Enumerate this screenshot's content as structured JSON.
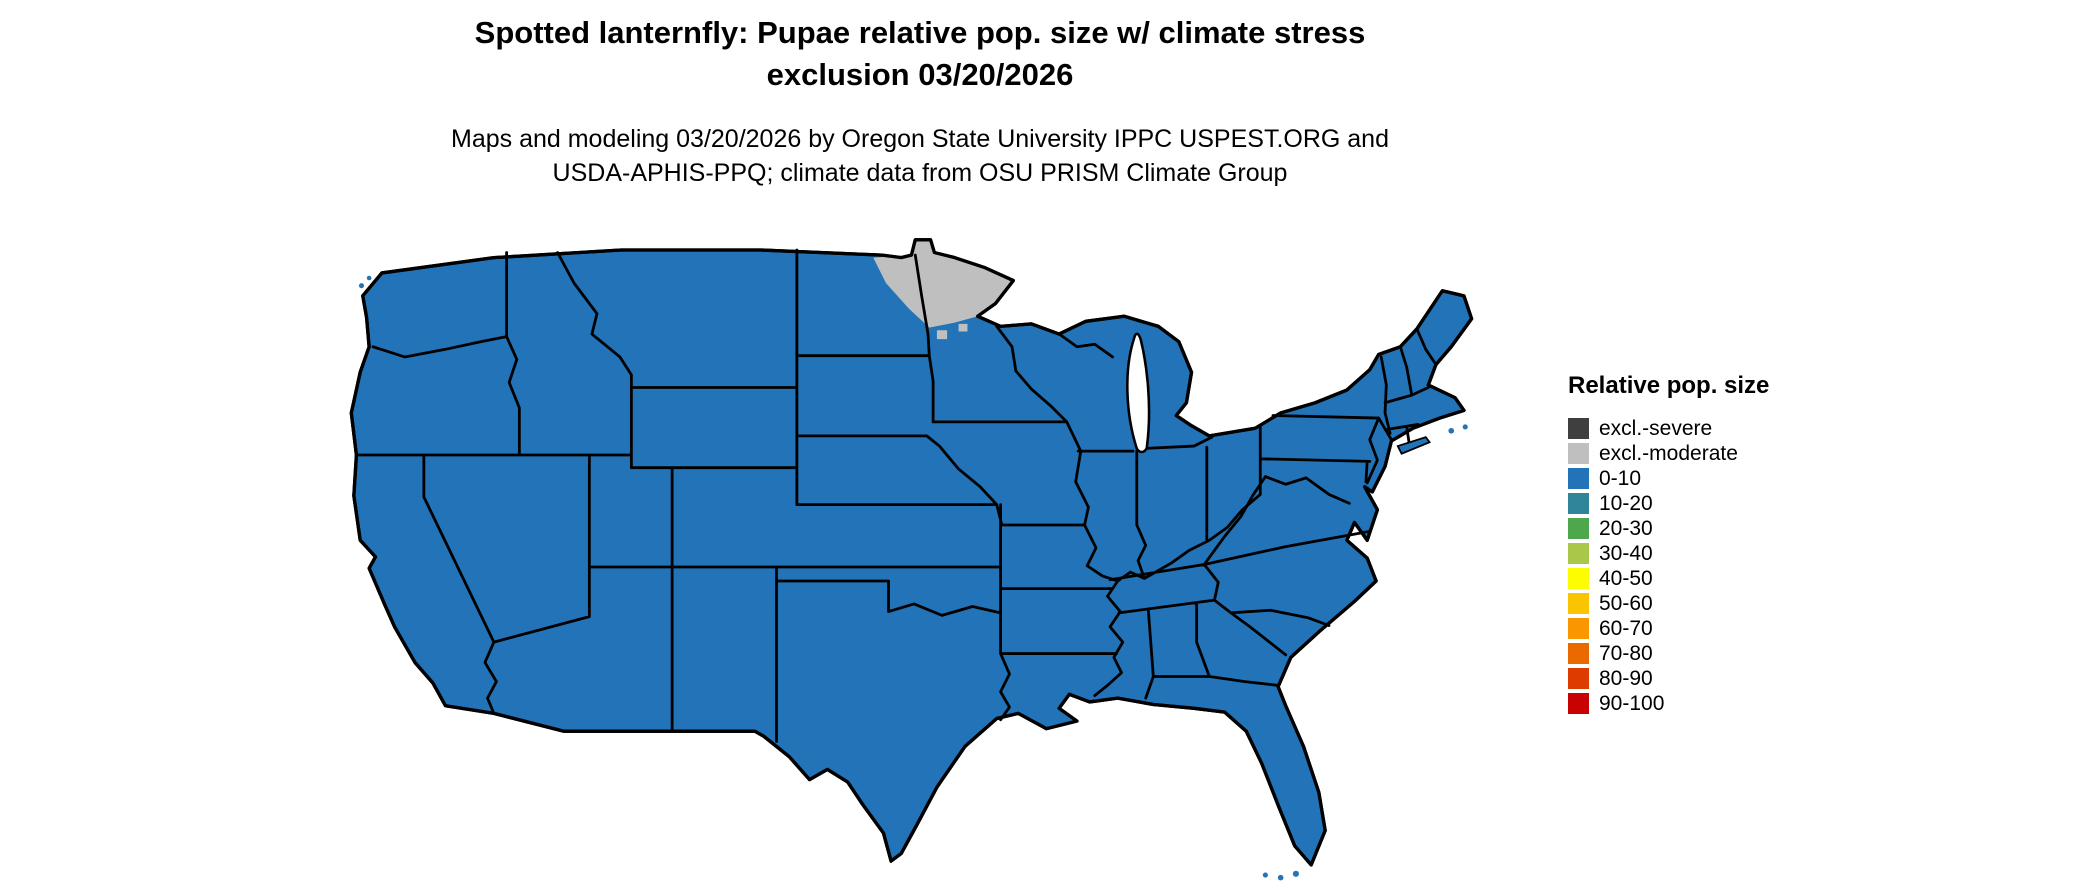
{
  "title": {
    "line1": "Spotted lanternfly: Pupae relative pop. size w/ climate stress",
    "line2": "exclusion 03/20/2026"
  },
  "subtitle": {
    "line1": "Maps and modeling 03/20/2026 by Oregon State University IPPC USPEST.ORG and",
    "line2": "USDA-APHIS-PPQ; climate data from OSU PRISM Climate Group"
  },
  "legend": {
    "title": "Relative pop. size",
    "entries": [
      {
        "label": "excl.-severe",
        "color": "#3f3f3f"
      },
      {
        "label": "excl.-moderate",
        "color": "#bfbfbf"
      },
      {
        "label": "0-10",
        "color": "#2273b8"
      },
      {
        "label": "10-20",
        "color": "#31859b"
      },
      {
        "label": "20-30",
        "color": "#4ea64d"
      },
      {
        "label": "30-40",
        "color": "#a9c84a"
      },
      {
        "label": "40-50",
        "color": "#fdfd00"
      },
      {
        "label": "50-60",
        "color": "#fbc400"
      },
      {
        "label": "60-70",
        "color": "#fa9600"
      },
      {
        "label": "70-80",
        "color": "#eb6a00"
      },
      {
        "label": "80-90",
        "color": "#dd3c00"
      },
      {
        "label": "90-100",
        "color": "#c80101"
      }
    ]
  },
  "map": {
    "colors": {
      "land": "#2273b8",
      "exclusion_moderate": "#bfbfbf",
      "stroke": "#000000",
      "water": "#ffffff"
    }
  }
}
